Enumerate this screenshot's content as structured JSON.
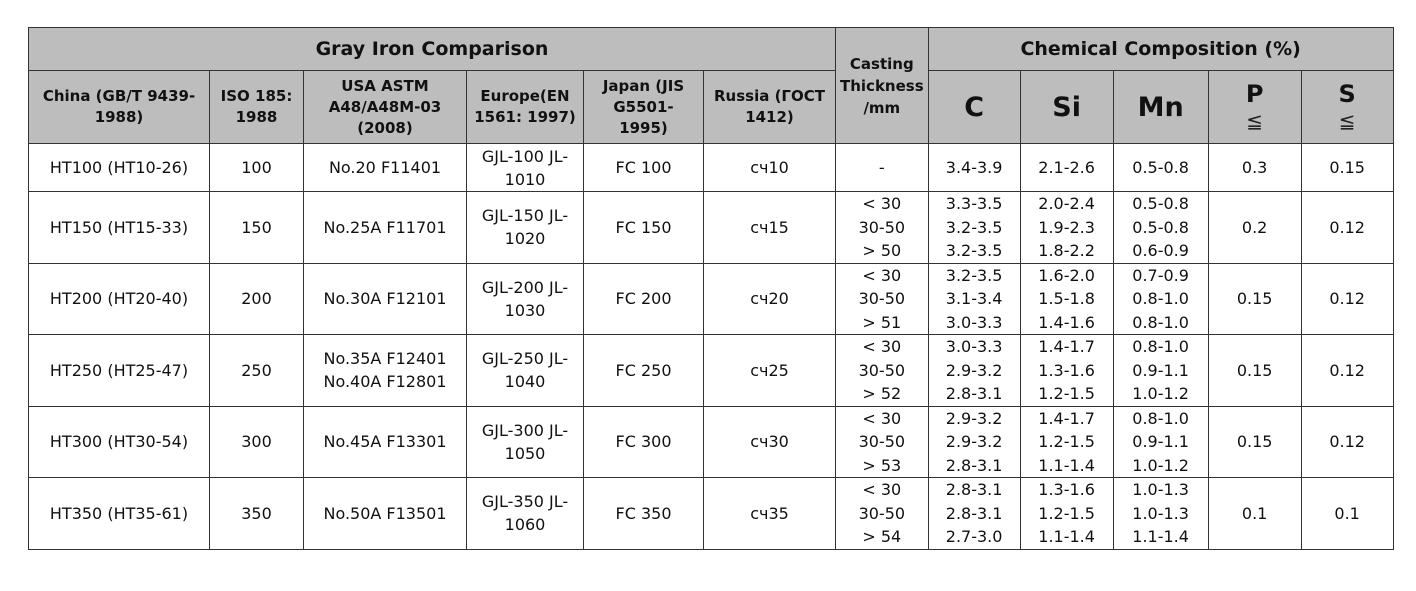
{
  "title": "Gray Iron Comparison",
  "chem_title": "Chemical Composition (%)",
  "headers": {
    "china": "China (GB/T 9439-1988)",
    "iso": "ISO 185: 1988",
    "usa": "USA ASTM A48/A48M-03 (2008)",
    "europe": "Europe(EN 1561: 1997)",
    "japan": "Japan (JIS G5501-1995)",
    "russia": "Russia (ГОСТ 1412)",
    "casting": "Casting Thickness /mm",
    "c": "C",
    "si": "Si",
    "mn": "Mn",
    "p": "P",
    "s": "S",
    "le": "≦"
  },
  "rows": [
    {
      "china": "HT100 (HT10-26)",
      "iso": "100",
      "usa": [
        "No.20 F11401"
      ],
      "europe": "GJL-100 JL-1010",
      "japan": "FC 100",
      "russia": "сч10",
      "thickness": [
        "-"
      ],
      "c": [
        "3.4-3.9"
      ],
      "si": [
        "2.1-2.6"
      ],
      "mn": [
        "0.5-0.8"
      ],
      "p": "0.3",
      "s": "0.15"
    },
    {
      "china": "HT150 (HT15-33)",
      "iso": "150",
      "usa": [
        "No.25A F11701"
      ],
      "europe": "GJL-150 JL-1020",
      "japan": "FC 150",
      "russia": "сч15",
      "thickness": [
        "< 30",
        "30-50",
        "> 50"
      ],
      "c": [
        "3.3-3.5",
        "3.2-3.5",
        "3.2-3.5"
      ],
      "si": [
        "2.0-2.4",
        "1.9-2.3",
        "1.8-2.2"
      ],
      "mn": [
        "0.5-0.8",
        "0.5-0.8",
        "0.6-0.9"
      ],
      "p": "0.2",
      "s": "0.12"
    },
    {
      "china": "HT200 (HT20-40)",
      "iso": "200",
      "usa": [
        "No.30A F12101"
      ],
      "europe": "GJL-200 JL-1030",
      "japan": "FC 200",
      "russia": "сч20",
      "thickness": [
        "< 30",
        "30-50",
        "> 51"
      ],
      "c": [
        "3.2-3.5",
        "3.1-3.4",
        "3.0-3.3"
      ],
      "si": [
        "1.6-2.0",
        "1.5-1.8",
        "1.4-1.6"
      ],
      "mn": [
        "0.7-0.9",
        "0.8-1.0",
        "0.8-1.0"
      ],
      "p": "0.15",
      "s": "0.12"
    },
    {
      "china": "HT250 (HT25-47)",
      "iso": "250",
      "usa": [
        "No.35A F12401",
        "No.40A F12801"
      ],
      "europe": "GJL-250 JL-1040",
      "japan": "FC 250",
      "russia": "сч25",
      "thickness": [
        "< 30",
        "30-50",
        "> 52"
      ],
      "c": [
        "3.0-3.3",
        "2.9-3.2",
        "2.8-3.1"
      ],
      "si": [
        "1.4-1.7",
        "1.3-1.6",
        "1.2-1.5"
      ],
      "mn": [
        "0.8-1.0",
        "0.9-1.1",
        "1.0-1.2"
      ],
      "p": "0.15",
      "s": "0.12"
    },
    {
      "china": "HT300  (HT30-54)",
      "iso": "300",
      "usa": [
        "No.45A F13301"
      ],
      "europe": "GJL-300 JL-1050",
      "japan": "FC 300",
      "russia": "сч30",
      "thickness": [
        "< 30",
        "30-50",
        "> 53"
      ],
      "c": [
        "2.9-3.2",
        "2.9-3.2",
        "2.8-3.1"
      ],
      "si": [
        "1.4-1.7",
        "1.2-1.5",
        "1.1-1.4"
      ],
      "mn": [
        "0.8-1.0",
        "0.9-1.1",
        "1.0-1.2"
      ],
      "p": "0.15",
      "s": "0.12"
    },
    {
      "china": "HT350  (HT35-61)",
      "iso": "350",
      "usa": [
        "No.50A F13501"
      ],
      "europe": "GJL-350 JL-1060",
      "japan": "FC 350",
      "russia": "сч35",
      "thickness": [
        "< 30",
        "30-50",
        "> 54"
      ],
      "c": [
        "2.8-3.1",
        "2.8-3.1",
        "2.7-3.0"
      ],
      "si": [
        "1.3-1.6",
        "1.2-1.5",
        "1.1-1.4"
      ],
      "mn": [
        "1.0-1.3",
        "1.0-1.3",
        "1.1-1.4"
      ],
      "p": "0.1",
      "s": "0.1"
    }
  ]
}
